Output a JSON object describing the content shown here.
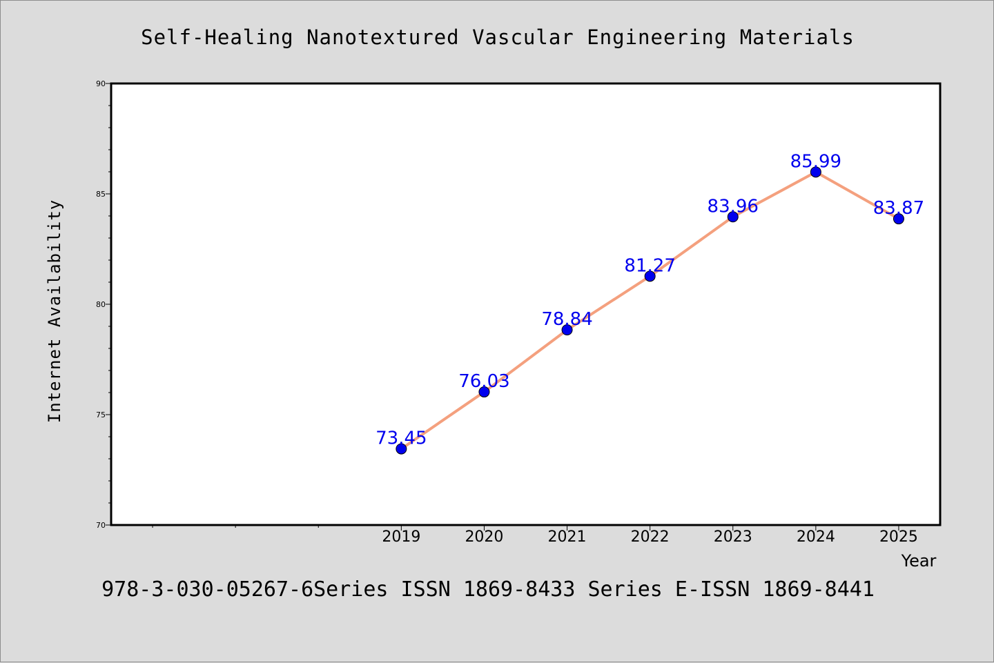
{
  "chart_data": {
    "type": "line",
    "title": "Self-Healing Nanotextured Vascular Engineering Materials",
    "xlabel": "Year",
    "ylabel": "Internet Availability",
    "footer": "978-3-030-05267-6Series ISSN 1869-8433 Series E-ISSN 1869-8441",
    "x": [
      "2019",
      "2020",
      "2021",
      "2022",
      "2023",
      "2024",
      "2025"
    ],
    "y": [
      73.45,
      76.03,
      78.84,
      81.27,
      83.96,
      85.99,
      83.87
    ],
    "data_labels": [
      "73.45",
      "76.03",
      "78.84",
      "81.27",
      "83.96",
      "85.99",
      "83.87"
    ],
    "y_ticks": [
      "70",
      "75",
      "80",
      "85",
      "90"
    ],
    "ylim": [
      70,
      90
    ],
    "x_slots": 10,
    "grid": false,
    "line_color": "#f4a07e",
    "marker_color": "#0000ee",
    "label_color": "#0000ee",
    "plot_background": "#ffffff",
    "page_background": "#dcdcdc"
  }
}
